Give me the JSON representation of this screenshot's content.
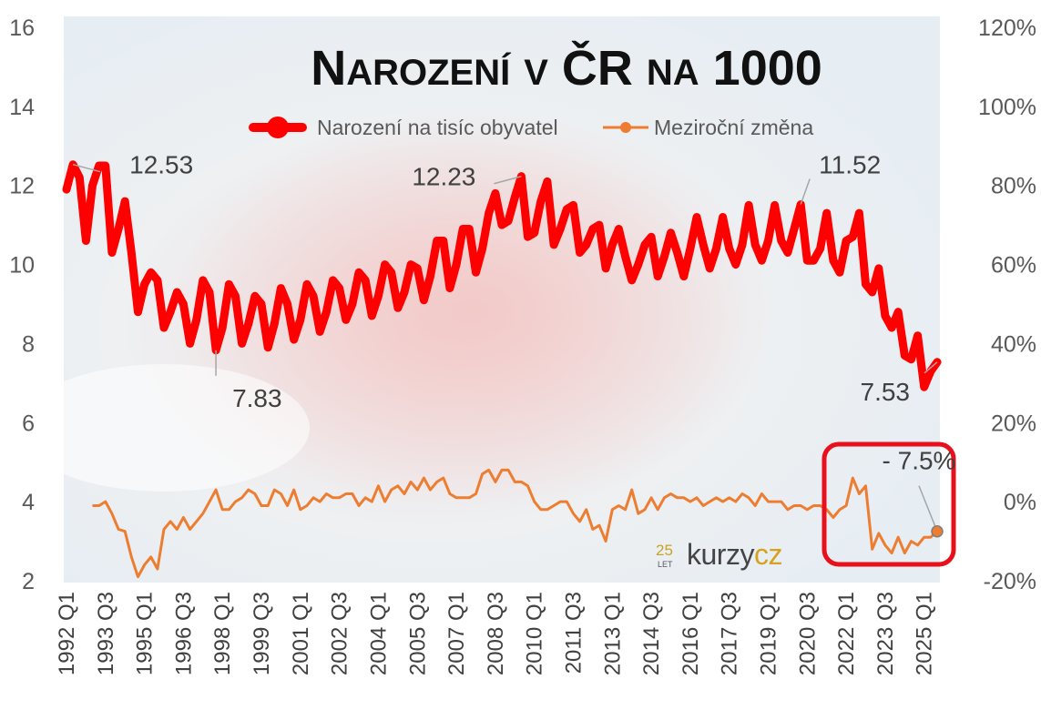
{
  "chart_data": {
    "type": "line",
    "title_parts": [
      {
        "text": "N",
        "small": false
      },
      {
        "text": "AROZENÍ",
        "small": true
      },
      {
        "text": " ",
        "small": false
      },
      {
        "text": "V",
        "small": true
      },
      {
        "text": " ČR ",
        "small": false
      },
      {
        "text": "NA",
        "small": true
      },
      {
        "text": " 1000",
        "small": false
      }
    ],
    "title": "Narození v ČR na 1000",
    "y_left": {
      "min": 2,
      "max": 16,
      "ticks": [
        "2",
        "4",
        "6",
        "8",
        "10",
        "12",
        "14",
        "16"
      ]
    },
    "y_right": {
      "min": -20,
      "max": 120,
      "ticks": [
        "-20%",
        "0%",
        "20%",
        "40%",
        "60%",
        "80%",
        "100%",
        "120%"
      ]
    },
    "x_labels": [
      "1992 Q1",
      "1993 Q3",
      "1995 Q1",
      "1996 Q3",
      "1998 Q1",
      "1999 Q3",
      "2001 Q1",
      "2002 Q3",
      "2004 Q1",
      "2005 Q3",
      "2007 Q1",
      "2008 Q3",
      "2010 Q1",
      "2011 Q3",
      "2013 Q1",
      "2014 Q3",
      "2016 Q1",
      "2017 Q3",
      "2019 Q1",
      "2020 Q3",
      "2022 Q1",
      "2023 Q3",
      "2025 Q1"
    ],
    "x_label_step": 6,
    "n_points": 135,
    "series": [
      {
        "name": "Narození na tisíc obyvatel",
        "axis": "left",
        "color": "#ff0000",
        "anchors": [
          [
            0,
            11.9
          ],
          [
            1,
            12.53
          ],
          [
            2,
            12.2
          ],
          [
            3,
            10.6
          ],
          [
            4,
            12.0
          ],
          [
            5,
            12.5
          ],
          [
            6,
            12.5
          ],
          [
            7,
            10.3
          ],
          [
            8,
            10.9
          ],
          [
            9,
            11.6
          ],
          [
            10,
            10.3
          ],
          [
            11,
            8.8
          ],
          [
            12,
            9.5
          ],
          [
            13,
            9.8
          ],
          [
            14,
            9.6
          ],
          [
            15,
            8.4
          ],
          [
            16,
            8.8
          ],
          [
            17,
            9.3
          ],
          [
            18,
            9.0
          ],
          [
            19,
            8.0
          ],
          [
            20,
            8.6
          ],
          [
            21,
            9.6
          ],
          [
            22,
            9.3
          ],
          [
            23,
            7.83
          ],
          [
            24,
            8.4
          ],
          [
            25,
            9.5
          ],
          [
            26,
            9.2
          ],
          [
            27,
            8.0
          ],
          [
            28,
            8.5
          ],
          [
            29,
            9.2
          ],
          [
            30,
            9.0
          ],
          [
            31,
            7.9
          ],
          [
            32,
            8.5
          ],
          [
            33,
            9.4
          ],
          [
            34,
            9.0
          ],
          [
            35,
            8.1
          ],
          [
            36,
            8.6
          ],
          [
            37,
            9.5
          ],
          [
            38,
            9.2
          ],
          [
            39,
            8.3
          ],
          [
            40,
            8.8
          ],
          [
            41,
            9.6
          ],
          [
            42,
            9.4
          ],
          [
            43,
            8.6
          ],
          [
            44,
            9.0
          ],
          [
            45,
            9.8
          ],
          [
            46,
            9.6
          ],
          [
            47,
            8.7
          ],
          [
            48,
            9.2
          ],
          [
            49,
            10.0
          ],
          [
            50,
            9.8
          ],
          [
            51,
            8.9
          ],
          [
            52,
            9.3
          ],
          [
            53,
            10.0
          ],
          [
            54,
            9.9
          ],
          [
            55,
            9.1
          ],
          [
            56,
            9.7
          ],
          [
            57,
            10.6
          ],
          [
            58,
            10.6
          ],
          [
            59,
            9.4
          ],
          [
            60,
            10.0
          ],
          [
            61,
            10.9
          ],
          [
            62,
            10.9
          ],
          [
            63,
            9.8
          ],
          [
            64,
            10.4
          ],
          [
            65,
            11.3
          ],
          [
            66,
            11.8
          ],
          [
            67,
            11.0
          ],
          [
            68,
            11.1
          ],
          [
            69,
            11.7
          ],
          [
            70,
            12.23
          ],
          [
            71,
            10.7
          ],
          [
            72,
            10.8
          ],
          [
            73,
            11.6
          ],
          [
            74,
            12.1
          ],
          [
            75,
            10.5
          ],
          [
            76,
            10.9
          ],
          [
            77,
            11.4
          ],
          [
            78,
            11.5
          ],
          [
            79,
            10.3
          ],
          [
            80,
            10.5
          ],
          [
            81,
            10.9
          ],
          [
            82,
            11.0
          ],
          [
            83,
            9.9
          ],
          [
            84,
            10.5
          ],
          [
            85,
            10.9
          ],
          [
            86,
            10.2
          ],
          [
            87,
            9.6
          ],
          [
            88,
            10.0
          ],
          [
            89,
            10.5
          ],
          [
            90,
            10.7
          ],
          [
            91,
            9.7
          ],
          [
            92,
            10.2
          ],
          [
            93,
            10.8
          ],
          [
            94,
            10.3
          ],
          [
            95,
            9.7
          ],
          [
            96,
            10.4
          ],
          [
            97,
            11.2
          ],
          [
            98,
            10.5
          ],
          [
            99,
            9.9
          ],
          [
            100,
            10.4
          ],
          [
            101,
            11.2
          ],
          [
            102,
            10.4
          ],
          [
            103,
            10.0
          ],
          [
            104,
            10.5
          ],
          [
            105,
            11.5
          ],
          [
            106,
            10.5
          ],
          [
            107,
            10.1
          ],
          [
            108,
            10.6
          ],
          [
            109,
            11.5
          ],
          [
            110,
            10.6
          ],
          [
            111,
            10.3
          ],
          [
            112,
            10.9
          ],
          [
            113,
            11.52
          ],
          [
            114,
            10.1
          ],
          [
            115,
            10.1
          ],
          [
            116,
            10.4
          ],
          [
            117,
            11.3
          ],
          [
            118,
            10.1
          ],
          [
            119,
            9.8
          ],
          [
            120,
            10.6
          ],
          [
            121,
            10.7
          ],
          [
            122,
            11.3
          ],
          [
            123,
            9.5
          ],
          [
            124,
            9.3
          ],
          [
            125,
            9.9
          ],
          [
            126,
            8.7
          ],
          [
            127,
            8.4
          ],
          [
            128,
            8.8
          ],
          [
            129,
            7.7
          ],
          [
            130,
            7.6
          ],
          [
            131,
            8.2
          ],
          [
            132,
            6.9
          ],
          [
            133,
            7.3
          ],
          [
            134,
            7.53
          ]
        ]
      },
      {
        "name": "Meziroční změna",
        "axis": "right",
        "color": "#ed7d31",
        "anchors": [
          [
            4,
            -1
          ],
          [
            5,
            -1
          ],
          [
            6,
            0
          ],
          [
            7,
            -3
          ],
          [
            8,
            -7
          ],
          [
            9,
            -7.5
          ],
          [
            10,
            -14
          ],
          [
            11,
            -19
          ],
          [
            12,
            -16
          ],
          [
            13,
            -14
          ],
          [
            14,
            -17
          ],
          [
            15,
            -7
          ],
          [
            16,
            -5
          ],
          [
            17,
            -7
          ],
          [
            18,
            -4
          ],
          [
            19,
            -7
          ],
          [
            20,
            -5
          ],
          [
            21,
            -3
          ],
          [
            22,
            0
          ],
          [
            23,
            3
          ],
          [
            24,
            -2
          ],
          [
            25,
            -2
          ],
          [
            26,
            0
          ],
          [
            27,
            1
          ],
          [
            28,
            3
          ],
          [
            29,
            2
          ],
          [
            30,
            -1
          ],
          [
            31,
            -1
          ],
          [
            32,
            3
          ],
          [
            33,
            2
          ],
          [
            34,
            -1
          ],
          [
            35,
            3
          ],
          [
            36,
            -2
          ],
          [
            37,
            -1
          ],
          [
            38,
            1
          ],
          [
            39,
            0
          ],
          [
            40,
            2
          ],
          [
            41,
            1
          ],
          [
            42,
            1
          ],
          [
            43,
            2
          ],
          [
            44,
            2
          ],
          [
            45,
            -1
          ],
          [
            46,
            1
          ],
          [
            47,
            0
          ],
          [
            48,
            4
          ],
          [
            49,
            0
          ],
          [
            50,
            3
          ],
          [
            51,
            4
          ],
          [
            52,
            2
          ],
          [
            53,
            5
          ],
          [
            54,
            3
          ],
          [
            55,
            6
          ],
          [
            56,
            3
          ],
          [
            57,
            5
          ],
          [
            58,
            6
          ],
          [
            59,
            2
          ],
          [
            60,
            1
          ],
          [
            61,
            1
          ],
          [
            62,
            1
          ],
          [
            63,
            2
          ],
          [
            64,
            7
          ],
          [
            65,
            8
          ],
          [
            66,
            5
          ],
          [
            67,
            8
          ],
          [
            68,
            8
          ],
          [
            69,
            5
          ],
          [
            70,
            5
          ],
          [
            71,
            4
          ],
          [
            72,
            0
          ],
          [
            73,
            -2
          ],
          [
            74,
            -2
          ],
          [
            75,
            -1
          ],
          [
            76,
            0
          ],
          [
            77,
            0
          ],
          [
            78,
            -3
          ],
          [
            79,
            -5
          ],
          [
            80,
            -2
          ],
          [
            81,
            -7
          ],
          [
            82,
            -6
          ],
          [
            83,
            -10
          ],
          [
            84,
            -2
          ],
          [
            85,
            -1
          ],
          [
            86,
            -2
          ],
          [
            87,
            3
          ],
          [
            88,
            -3
          ],
          [
            89,
            -2
          ],
          [
            90,
            1
          ],
          [
            91,
            -2
          ],
          [
            92,
            1
          ],
          [
            93,
            2
          ],
          [
            94,
            1
          ],
          [
            95,
            1
          ],
          [
            96,
            0
          ],
          [
            97,
            1
          ],
          [
            98,
            -1
          ],
          [
            99,
            0
          ],
          [
            100,
            1
          ],
          [
            101,
            0
          ],
          [
            102,
            1
          ],
          [
            103,
            0
          ],
          [
            104,
            2
          ],
          [
            105,
            1
          ],
          [
            106,
            -1
          ],
          [
            107,
            2
          ],
          [
            108,
            0
          ],
          [
            109,
            0
          ],
          [
            110,
            0
          ],
          [
            111,
            -2
          ],
          [
            112,
            -1
          ],
          [
            113,
            -1
          ],
          [
            114,
            -2
          ],
          [
            115,
            -1
          ],
          [
            116,
            -1
          ],
          [
            117,
            -2
          ],
          [
            118,
            -4
          ],
          [
            119,
            -2
          ],
          [
            120,
            -1
          ],
          [
            121,
            6
          ],
          [
            122,
            2
          ],
          [
            123,
            4
          ],
          [
            124,
            -12
          ],
          [
            125,
            -8
          ],
          [
            126,
            -11
          ],
          [
            127,
            -13
          ],
          [
            128,
            -9
          ],
          [
            129,
            -13
          ],
          [
            130,
            -10
          ],
          [
            131,
            -11
          ],
          [
            132,
            -9
          ],
          [
            133,
            -9
          ],
          [
            134,
            -7.5
          ]
        ]
      }
    ],
    "annotations": [
      {
        "text": "12.53",
        "series": 0,
        "index": 1
      },
      {
        "text": "7.83",
        "series": 0,
        "index": 23
      },
      {
        "text": "12.23",
        "series": 0,
        "index": 70
      },
      {
        "text": "11.52",
        "series": 0,
        "index": 113
      },
      {
        "text": "7.53",
        "series": 0,
        "index": 134
      },
      {
        "text": "- 7.5%",
        "series": 1,
        "index": 134
      }
    ],
    "legend_position": "top-center",
    "grid": false
  },
  "branding": {
    "years": "25",
    "let": "LET",
    "kurzy": "kurzy",
    "cz": "cz"
  }
}
